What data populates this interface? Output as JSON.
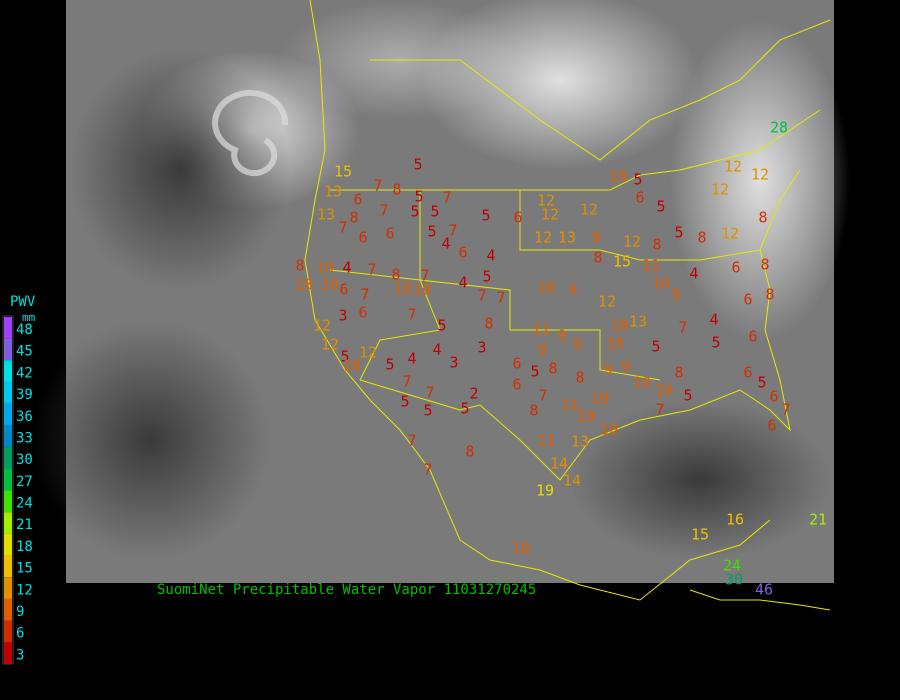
{
  "title": "SuomiNet Precipitable Water Vapor 11031270245",
  "legend": {
    "title": "PWV",
    "unit": "mm",
    "levels": [
      48,
      45,
      42,
      39,
      36,
      33,
      30,
      27,
      24,
      21,
      18,
      15,
      12,
      9,
      6,
      3
    ],
    "colors": [
      "#a040ff",
      "#8060e0",
      "#00e0e0",
      "#00c8f0",
      "#00a8e8",
      "#0088c8",
      "#00a060",
      "#00c040",
      "#40e000",
      "#a0f000",
      "#e0e000",
      "#f0c000",
      "#e09000",
      "#e06000",
      "#d03000",
      "#c00000"
    ]
  },
  "stations": [
    5,
    15,
    7,
    8,
    13,
    6,
    5,
    7,
    13,
    8,
    7,
    5,
    5,
    5,
    6,
    12,
    12,
    12,
    10,
    5,
    6,
    5,
    12,
    12,
    12,
    8,
    7,
    6,
    6,
    5,
    7,
    4,
    4,
    6,
    12,
    13,
    9,
    12,
    8,
    5,
    8,
    12,
    8,
    10,
    4,
    7,
    8,
    7,
    4,
    5,
    15,
    8,
    11,
    4,
    6,
    8,
    10,
    10,
    6,
    7,
    10,
    10,
    7,
    7,
    10,
    9,
    12,
    10,
    9,
    6,
    8,
    3,
    6,
    7,
    5,
    8,
    11,
    9,
    10,
    13,
    7,
    4,
    12,
    12,
    5,
    12,
    5,
    4,
    4,
    3,
    3,
    6,
    9,
    9,
    10,
    5,
    5,
    6,
    10,
    7,
    5,
    7,
    5,
    5,
    2,
    6,
    5,
    8,
    8,
    9,
    9,
    10,
    10,
    5,
    8,
    6,
    5,
    6,
    7,
    6,
    8,
    7,
    11,
    10,
    10,
    10,
    7,
    7,
    8,
    11,
    13,
    14,
    14,
    19,
    10,
    15,
    16,
    21,
    28,
    24,
    30,
    46,
    7
  ]
}
